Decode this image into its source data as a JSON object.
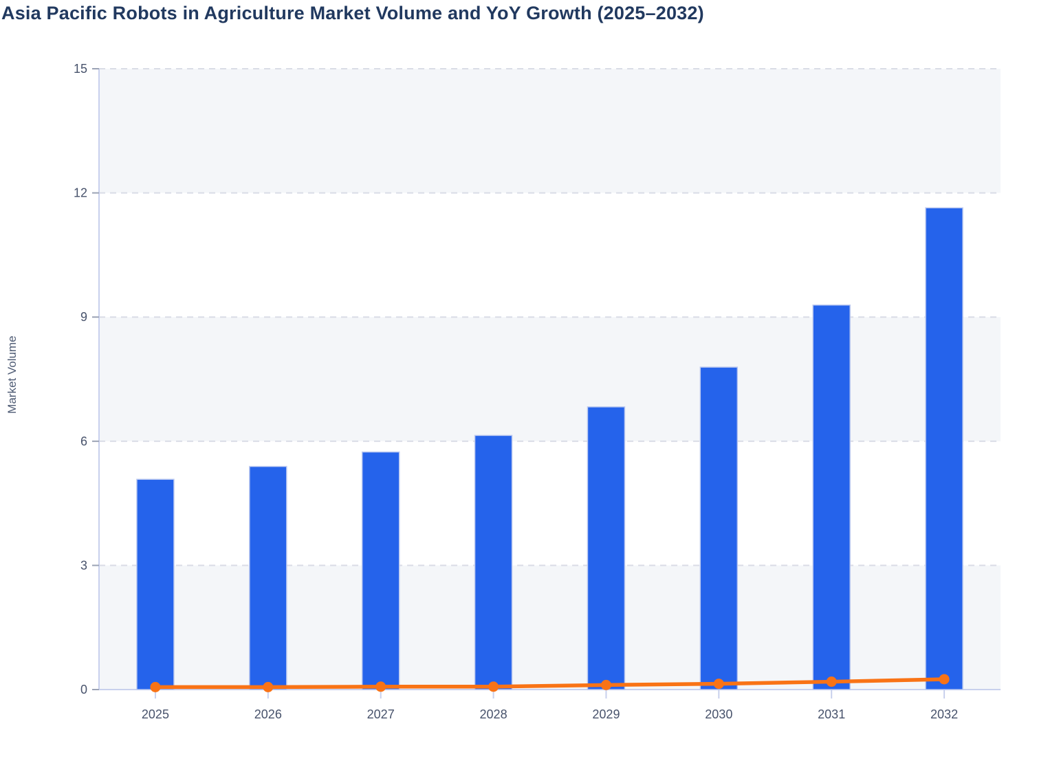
{
  "chart_data": {
    "type": "bar",
    "title": "Asia Pacific Robots in Agriculture Market Volume and YoY Growth (2025–2032)",
    "ylabel": "Market Volume",
    "xlabel": "",
    "categories": [
      "2025",
      "2026",
      "2027",
      "2028",
      "2029",
      "2030",
      "2031",
      "2032"
    ],
    "series": [
      {
        "name": "Market Volume",
        "type": "bar",
        "color": "#2563eb",
        "values": [
          5.08,
          5.39,
          5.74,
          6.14,
          6.83,
          7.79,
          9.29,
          11.64
        ]
      },
      {
        "name": "YoY Growth",
        "type": "line",
        "color": "#f97316",
        "values": [
          0.06,
          0.06,
          0.07,
          0.07,
          0.11,
          0.14,
          0.19,
          0.25
        ]
      }
    ],
    "ylim": [
      0,
      15
    ],
    "y_ticks": [
      0,
      3,
      6,
      9,
      12,
      15
    ],
    "grid": "horizontal-dashed",
    "legend": "none",
    "plot_bands": "alternating-gray",
    "colors": {
      "bar": "#2563eb",
      "bar_border": "#b9c7f0",
      "line": "#f97316",
      "title": "#21395f",
      "tick_label": "#47526b",
      "axis_line": "#c8d0ed",
      "axis_tick": "#9aa2b4",
      "grid_line": "#d9dce6",
      "band": "#f4f6f9",
      "background": "#ffffff"
    }
  }
}
